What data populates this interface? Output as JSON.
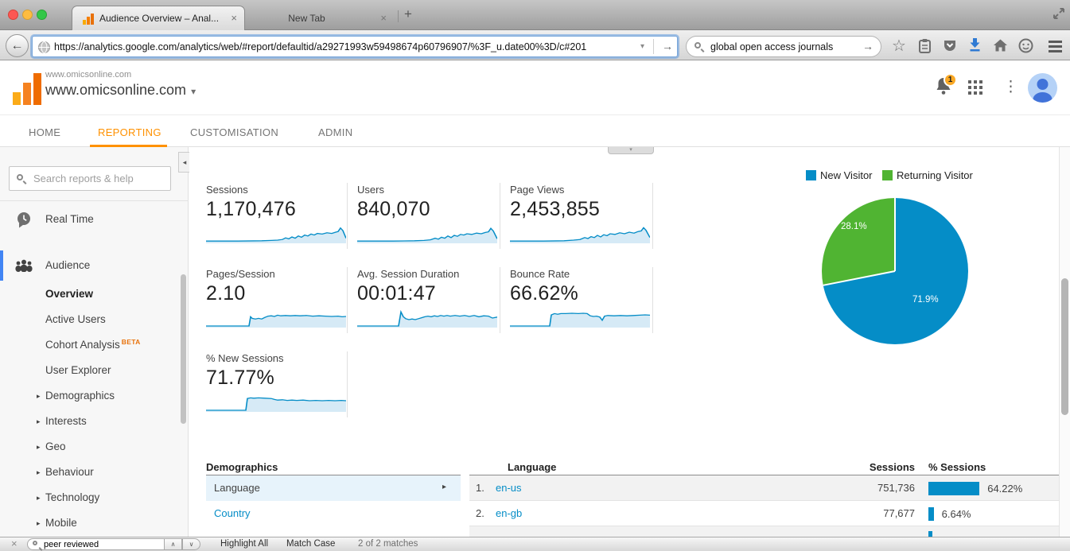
{
  "colors": {
    "accent_orange": "#ff9100",
    "link_blue": "#058dc7",
    "pie_blue": "#058dc7",
    "pie_green": "#50b432",
    "mac_close": "#fc5753",
    "mac_minimize": "#fdbc40",
    "mac_zoom": "#33c748",
    "download_blue": "#2f7ad3",
    "notification_badge": "#f9a825",
    "sidebar_active_bar": "#4285f4"
  },
  "icons": {
    "back": "←",
    "go": "→",
    "url_dropdown": "▾",
    "star": "☆",
    "overflow_dots": "⋮",
    "account_caret": "▾",
    "expand_caret": "▸",
    "row_arrow": "▸",
    "collapse_sidebar": "◂",
    "handle_caret": "▾",
    "find_prev": "∧",
    "find_next": "∨",
    "close": "×",
    "new_tab": "+"
  },
  "browser": {
    "tabs": [
      {
        "title": "Audience Overview – Anal...",
        "active": true
      },
      {
        "title": "New Tab",
        "active": false
      }
    ],
    "url": "https://analytics.google.com/analytics/web/#report/defaultid/a29271993w59498674p60796907/%3F_u.date00%3D/c#201",
    "search_value": "global open access journals",
    "find": {
      "value": "peer reviewed",
      "highlight_all": "Highlight All",
      "match_case": "Match Case",
      "matches": "2 of 2 matches"
    }
  },
  "header": {
    "account_label": "www.omicsonline.com",
    "account_name": "www.omicsonline.com",
    "notification_count": "1"
  },
  "nav": {
    "items": [
      {
        "label": "HOME",
        "active": false
      },
      {
        "label": "REPORTING",
        "active": true
      },
      {
        "label": "CUSTOMISATION",
        "active": false
      },
      {
        "label": "ADMIN",
        "active": false
      }
    ]
  },
  "sidebar": {
    "search_placeholder": "Search reports & help",
    "sections": [
      {
        "label": "Real Time"
      },
      {
        "label": "Audience"
      }
    ],
    "audience_items": [
      {
        "label": "Overview",
        "active": true
      },
      {
        "label": "Active Users"
      },
      {
        "label": "Cohort Analysis",
        "badge": "BETA"
      },
      {
        "label": "User Explorer"
      },
      {
        "label": "Demographics",
        "expandable": true
      },
      {
        "label": "Interests",
        "expandable": true
      },
      {
        "label": "Geo",
        "expandable": true
      },
      {
        "label": "Behaviour",
        "expandable": true
      },
      {
        "label": "Technology",
        "expandable": true
      },
      {
        "label": "Mobile",
        "expandable": true
      }
    ]
  },
  "metrics": [
    {
      "label": "Sessions",
      "value": "1,170,476"
    },
    {
      "label": "Users",
      "value": "840,070"
    },
    {
      "label": "Page Views",
      "value": "2,453,855"
    },
    {
      "label": "Pages/Session",
      "value": "2.10"
    },
    {
      "label": "Avg. Session Duration",
      "value": "00:01:47"
    },
    {
      "label": "Bounce Rate",
      "value": "66.62%"
    },
    {
      "label": "% New Sessions",
      "value": "71.77%"
    }
  ],
  "demographics": {
    "title": "Demographics",
    "rows": [
      {
        "label": "Language",
        "selected": true
      },
      {
        "label": "Country",
        "selected": false
      }
    ]
  },
  "language_table": {
    "col_language": "Language",
    "col_sessions": "Sessions",
    "col_pct": "% Sessions",
    "rows": [
      {
        "rank": "1.",
        "language": "en-us",
        "sessions": "751,736",
        "pct": "64.22%",
        "pct_value": 64.22
      },
      {
        "rank": "2.",
        "language": "en-gb",
        "sessions": "77,677",
        "pct": "6.64%",
        "pct_value": 6.64
      }
    ]
  },
  "chart_data": [
    {
      "type": "pie",
      "title": "New vs Returning Visitors",
      "labels": [
        "New Visitor",
        "Returning Visitor"
      ],
      "values": [
        71.9,
        28.1
      ],
      "value_labels": [
        "71.9%",
        "28.1%"
      ],
      "colors": [
        "#058dc7",
        "#50b432"
      ],
      "legend_position": "top"
    },
    {
      "type": "line",
      "name": "metric-sparklines",
      "note": "normalized coords, x 0-176, y 0-30 (0 = top)",
      "stroke": "#058dc7",
      "fill": "#d6eaf6",
      "series": [
        {
          "name": "Sessions",
          "points": [
            [
              0,
              26.5
            ],
            [
              40,
              26.5
            ],
            [
              70,
              26
            ],
            [
              82,
              25.5
            ],
            [
              90,
              25
            ],
            [
              96,
              24
            ],
            [
              100,
              21.5
            ],
            [
              104,
              23
            ],
            [
              108,
              20
            ],
            [
              112,
              22
            ],
            [
              116,
              18.5
            ],
            [
              120,
              20.5
            ],
            [
              124,
              17
            ],
            [
              128,
              18.5
            ],
            [
              132,
              15.5
            ],
            [
              136,
              17
            ],
            [
              140,
              14.5
            ],
            [
              146,
              15.5
            ],
            [
              152,
              13.5
            ],
            [
              158,
              14.5
            ],
            [
              163,
              12.5
            ],
            [
              166,
              11.5
            ],
            [
              169,
              6
            ],
            [
              172,
              10
            ],
            [
              176,
              22
            ]
          ]
        },
        {
          "name": "Users",
          "points": [
            [
              0,
              26.5
            ],
            [
              45,
              26.5
            ],
            [
              72,
              26
            ],
            [
              84,
              25.5
            ],
            [
              92,
              24.5
            ],
            [
              98,
              22
            ],
            [
              102,
              23.5
            ],
            [
              106,
              20.5
            ],
            [
              110,
              22
            ],
            [
              114,
              18.5
            ],
            [
              118,
              21
            ],
            [
              122,
              17.5
            ],
            [
              126,
              19
            ],
            [
              130,
              16
            ],
            [
              134,
              17
            ],
            [
              138,
              15
            ],
            [
              144,
              16
            ],
            [
              150,
              14
            ],
            [
              156,
              15
            ],
            [
              161,
              13
            ],
            [
              165,
              12
            ],
            [
              168,
              6.5
            ],
            [
              171,
              10.5
            ],
            [
              176,
              23
            ]
          ]
        },
        {
          "name": "Page Views",
          "points": [
            [
              0,
              26.5
            ],
            [
              42,
              26.5
            ],
            [
              68,
              26
            ],
            [
              80,
              25
            ],
            [
              88,
              24
            ],
            [
              94,
              21
            ],
            [
              98,
              22.5
            ],
            [
              102,
              19.5
            ],
            [
              106,
              21
            ],
            [
              110,
              17.5
            ],
            [
              114,
              20
            ],
            [
              118,
              16.5
            ],
            [
              122,
              18
            ],
            [
              126,
              15
            ],
            [
              132,
              16
            ],
            [
              138,
              13.5
            ],
            [
              144,
              15
            ],
            [
              150,
              12.5
            ],
            [
              156,
              14
            ],
            [
              161,
              11.5
            ],
            [
              165,
              10.5
            ],
            [
              168,
              5.5
            ],
            [
              171,
              9.5
            ],
            [
              176,
              21
            ]
          ]
        },
        {
          "name": "Pages/Session",
          "points": [
            [
              0,
              27.5
            ],
            [
              54,
              27.5
            ],
            [
              56,
              13
            ],
            [
              58,
              15.5
            ],
            [
              62,
              16.5
            ],
            [
              66,
              15.5
            ],
            [
              70,
              16.5
            ],
            [
              74,
              14
            ],
            [
              78,
              12
            ],
            [
              82,
              11.5
            ],
            [
              86,
              12.5
            ],
            [
              90,
              10.5
            ],
            [
              94,
              11.5
            ],
            [
              100,
              11
            ],
            [
              106,
              11.5
            ],
            [
              112,
              11
            ],
            [
              118,
              11.5
            ],
            [
              126,
              11
            ],
            [
              134,
              12
            ],
            [
              142,
              11.5
            ],
            [
              150,
              12
            ],
            [
              158,
              12.5
            ],
            [
              166,
              12
            ],
            [
              171,
              13
            ],
            [
              176,
              12.5
            ]
          ]
        },
        {
          "name": "Avg. Session Duration",
          "points": [
            [
              0,
              27.5
            ],
            [
              52,
              27.5
            ],
            [
              55,
              5.5
            ],
            [
              58,
              13
            ],
            [
              61,
              16
            ],
            [
              65,
              17.5
            ],
            [
              69,
              16.5
            ],
            [
              73,
              17.5
            ],
            [
              77,
              16
            ],
            [
              81,
              14.5
            ],
            [
              85,
              13
            ],
            [
              89,
              12
            ],
            [
              93,
              13
            ],
            [
              97,
              11.5
            ],
            [
              101,
              12.5
            ],
            [
              105,
              11
            ],
            [
              109,
              12
            ],
            [
              113,
              11
            ],
            [
              117,
              12
            ],
            [
              123,
              11
            ],
            [
              129,
              12
            ],
            [
              135,
              11
            ],
            [
              141,
              12.5
            ],
            [
              147,
              11
            ],
            [
              153,
              13
            ],
            [
              159,
              11.5
            ],
            [
              165,
              12
            ],
            [
              170,
              15
            ],
            [
              176,
              13.5
            ]
          ]
        },
        {
          "name": "Bounce Rate",
          "points": [
            [
              0,
              27.5
            ],
            [
              50,
              27.5
            ],
            [
              52,
              10
            ],
            [
              56,
              8
            ],
            [
              60,
              9
            ],
            [
              64,
              8
            ],
            [
              70,
              8
            ],
            [
              78,
              7.5
            ],
            [
              86,
              8
            ],
            [
              92,
              7.5
            ],
            [
              97,
              8
            ],
            [
              101,
              11.5
            ],
            [
              105,
              12.5
            ],
            [
              109,
              12
            ],
            [
              113,
              13.5
            ],
            [
              116,
              18.5
            ],
            [
              119,
              12
            ],
            [
              123,
              11
            ],
            [
              131,
              11.5
            ],
            [
              139,
              11
            ],
            [
              147,
              11.5
            ],
            [
              155,
              11
            ],
            [
              163,
              10.5
            ],
            [
              170,
              10
            ],
            [
              176,
              10.5
            ]
          ]
        },
        {
          "name": "% New Sessions",
          "points": [
            [
              0,
              27.5
            ],
            [
              50,
              27.5
            ],
            [
              52,
              9
            ],
            [
              56,
              8
            ],
            [
              60,
              8.5
            ],
            [
              66,
              8
            ],
            [
              74,
              8.5
            ],
            [
              82,
              9
            ],
            [
              86,
              10.5
            ],
            [
              90,
              11.5
            ],
            [
              96,
              11
            ],
            [
              102,
              12
            ],
            [
              108,
              11.5
            ],
            [
              114,
              12
            ],
            [
              122,
              11.5
            ],
            [
              130,
              12.5
            ],
            [
              138,
              12
            ],
            [
              146,
              12.5
            ],
            [
              154,
              12
            ],
            [
              162,
              12.5
            ],
            [
              170,
              12
            ],
            [
              176,
              12.5
            ]
          ]
        }
      ]
    }
  ]
}
